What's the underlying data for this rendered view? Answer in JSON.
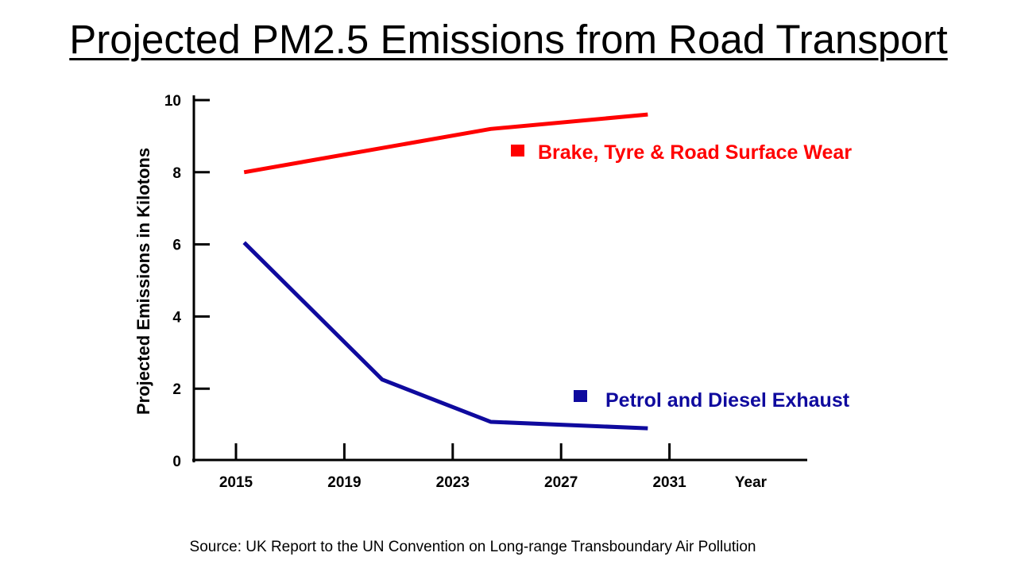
{
  "chart_data": {
    "type": "line",
    "title": "Projected PM2.5 Emissions from Road Transport",
    "ylabel": "Projected Emissions in Kilotons",
    "xlabel": "Year",
    "ylim": [
      0,
      10
    ],
    "xlim": [
      2015,
      2031
    ],
    "yticks": [
      "0",
      "2",
      "4",
      "6",
      "8",
      "10"
    ],
    "xticks": [
      "2015",
      "2019",
      "2023",
      "2027",
      "2031"
    ],
    "grid": false,
    "legend_placement": "inline-right",
    "series": [
      {
        "name": "Brake, Tyre & Road Surface Wear",
        "color": "#ff0000",
        "x": [
          2015.3,
          2024.4,
          2030.2
        ],
        "y": [
          8.0,
          9.2,
          9.6
        ]
      },
      {
        "name": "Petrol and Diesel Exhaust",
        "color": "#0f0a9e",
        "x": [
          2015.3,
          2020.4,
          2024.4,
          2030.2
        ],
        "y": [
          6.05,
          2.25,
          1.08,
          0.9
        ]
      }
    ],
    "source": "Source: UK Report to the UN Convention on Long-range Transboundary Air Pollution"
  }
}
